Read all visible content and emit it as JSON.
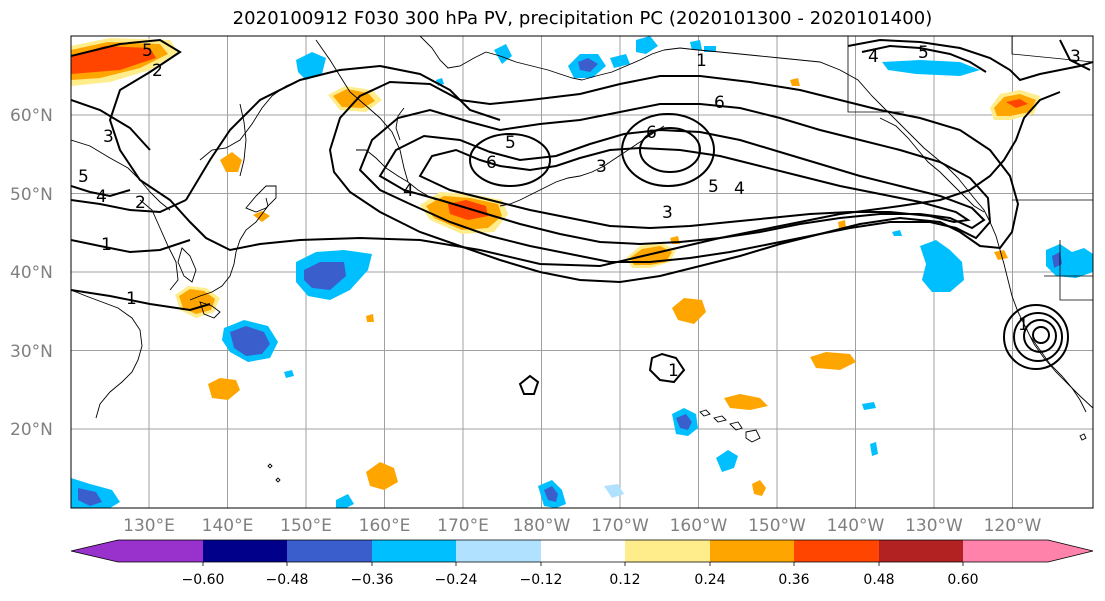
{
  "title": "2020100912 F030 300 hPa PV, precipitation PC (2020101300 - 2020101400)",
  "map": {
    "lat_labels": [
      "20°N",
      "30°N",
      "40°N",
      "50°N",
      "60°N"
    ],
    "lon_labels": [
      "130°E",
      "140°E",
      "150°E",
      "160°E",
      "170°E",
      "180°W",
      "170°W",
      "160°W",
      "150°W",
      "140°W",
      "130°W",
      "120°W"
    ],
    "pv_contour_labels": [
      "1",
      "2",
      "3",
      "4",
      "5",
      "6"
    ]
  },
  "colorbar": {
    "ticks": [
      "−0.60",
      "−0.48",
      "−0.36",
      "−0.24",
      "−0.12",
      "0.12",
      "0.24",
      "0.36",
      "0.48",
      "0.60"
    ],
    "colors": [
      "#9932CC",
      "#00008B",
      "#3A5FCD",
      "#00BFFF",
      "#B0E2FF",
      "#FFFFFF",
      "#FFEC8B",
      "#FFA500",
      "#FF4500",
      "#B22222",
      "#FF82AB"
    ]
  },
  "colors": {
    "neg_light": "#B0E2FF",
    "neg_med": "#00BFFF",
    "neg_strong": "#3A5FCD",
    "pos_light": "#FFEC8B",
    "pos_med": "#FFA500",
    "pos_strong": "#FF4500",
    "grid": "#a0a0a0",
    "axis_label": "#808080"
  }
}
